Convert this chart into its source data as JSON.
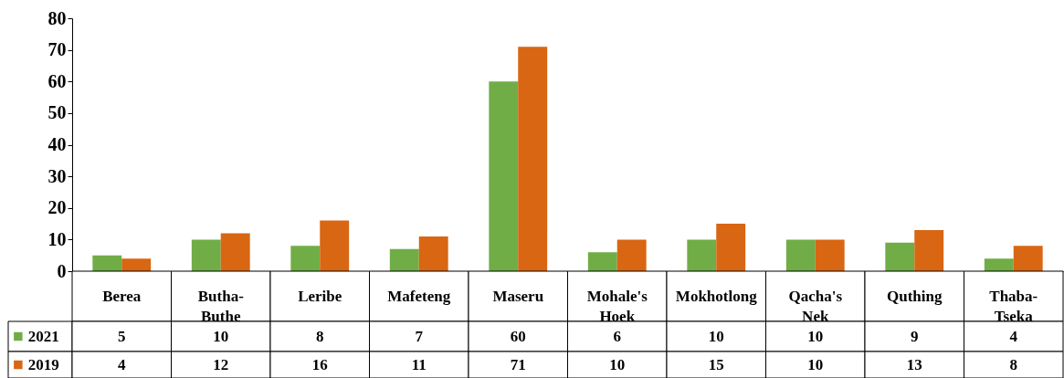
{
  "chart_data": {
    "type": "bar",
    "categories": [
      "Berea",
      "Butha-Buthe",
      "Leribe",
      "Mafeteng",
      "Maseru",
      "Mohale's Hoek",
      "Mokhotlong",
      "Qacha's Nek",
      "Quthing",
      "Thaba-Tseka"
    ],
    "series": [
      {
        "name": "2021",
        "color": "#70ad47",
        "values": [
          5,
          10,
          8,
          7,
          60,
          6,
          10,
          10,
          9,
          4
        ]
      },
      {
        "name": "2019",
        "color": "#d86613",
        "values": [
          4,
          12,
          16,
          11,
          71,
          10,
          15,
          10,
          13,
          8
        ]
      }
    ],
    "ylim": [
      0,
      80
    ],
    "yticks": [
      0,
      10,
      20,
      30,
      40,
      50,
      60,
      70,
      80
    ],
    "grid": false,
    "legend": "bottom",
    "data_labels": true
  }
}
